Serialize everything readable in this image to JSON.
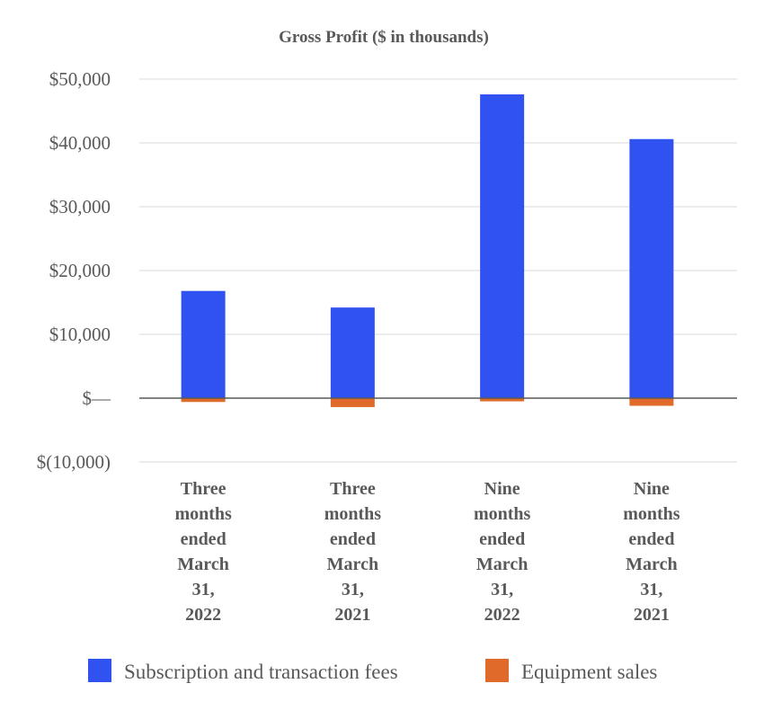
{
  "chart_data": {
    "type": "bar",
    "title": "Gross Profit ($ in thousands)",
    "xlabel": "",
    "ylabel": "",
    "ylim": [
      -10000,
      50000
    ],
    "yticks": [
      50000,
      40000,
      30000,
      20000,
      10000,
      0,
      -10000
    ],
    "ytick_labels": [
      "$50,000",
      "$40,000",
      "$30,000",
      "$20,000",
      "$10,000",
      "$—",
      "$(10,000)"
    ],
    "grid": true,
    "legend": "bottom",
    "categories": [
      [
        "Three",
        "months",
        "ended",
        "March",
        "31,",
        "2022"
      ],
      [
        "Three",
        "months",
        "ended",
        "March",
        "31,",
        "2021"
      ],
      [
        "Nine",
        "months",
        "ended",
        "March",
        "31,",
        "2022"
      ],
      [
        "Nine",
        "months",
        "ended",
        "March",
        "31,",
        "2021"
      ]
    ],
    "series": [
      {
        "name": "Subscription and transaction fees",
        "color": "#2f52f0",
        "values": [
          16800,
          14200,
          47600,
          40600
        ]
      },
      {
        "name": "Equipment sales",
        "color": "#e06a2a",
        "values": [
          -600,
          -1400,
          -500,
          -1200
        ]
      }
    ]
  }
}
